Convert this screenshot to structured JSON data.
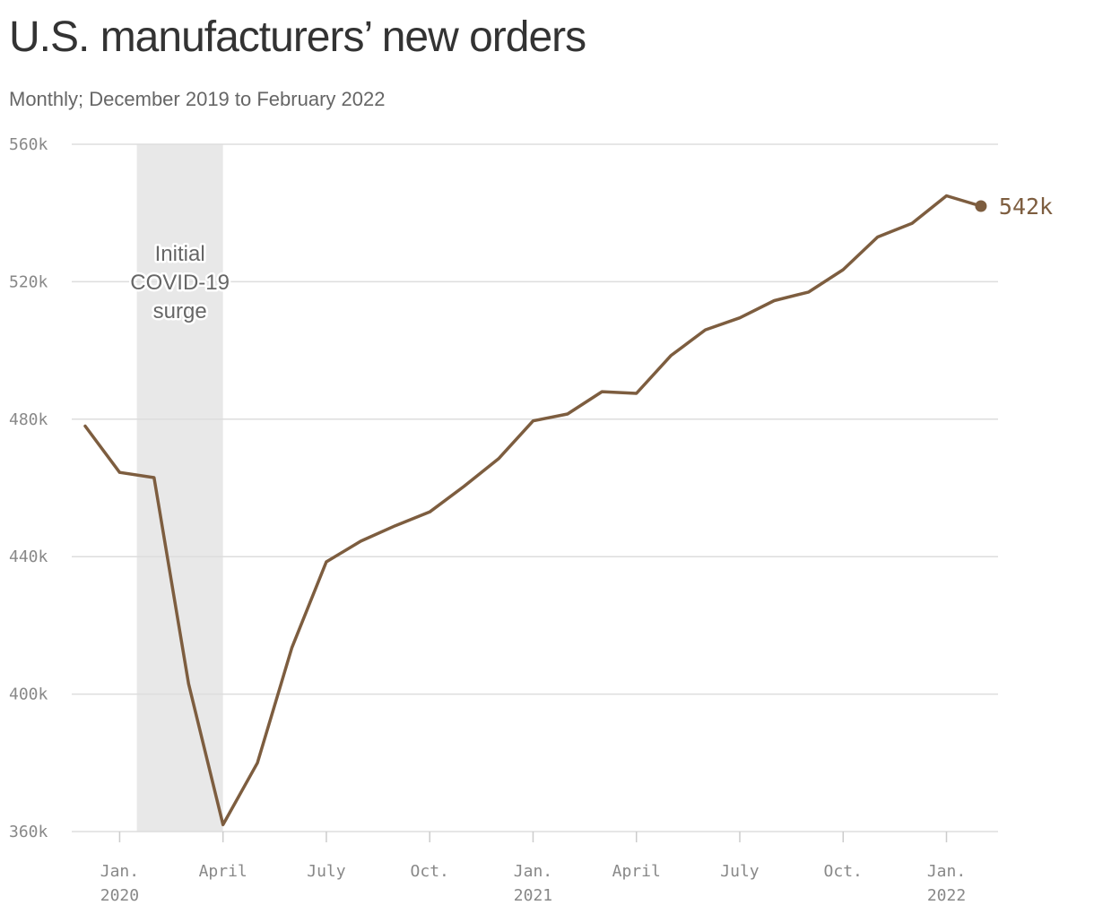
{
  "title": "U.S. manufacturers’ new orders",
  "subtitle": "Monthly; December 2019 to February 2022",
  "shaded_region": {
    "label_lines": [
      "Initial",
      "COVID-19",
      "surge"
    ],
    "start_month_index": 2,
    "end_month_index": 4
  },
  "end_label": "542k",
  "colors": {
    "line": "#7d5d3f",
    "shade": "#e8e8e8",
    "grid": "#dddddd",
    "tick_text": "#888888",
    "title": "#333333",
    "subtitle": "#666666"
  },
  "chart_data": {
    "type": "line",
    "title": "U.S. manufacturers’ new orders",
    "subtitle": "Monthly; December 2019 to February 2022",
    "xlabel": "",
    "ylabel": "",
    "ylim": [
      360000,
      560000
    ],
    "yticks": [
      360000,
      400000,
      440000,
      480000,
      520000,
      560000
    ],
    "ytick_labels": [
      "360k",
      "400k",
      "440k",
      "480k",
      "520k",
      "560k"
    ],
    "xticks": [
      {
        "month_index": 1,
        "lines": [
          "Jan.",
          "2020"
        ]
      },
      {
        "month_index": 4,
        "lines": [
          "April"
        ]
      },
      {
        "month_index": 7,
        "lines": [
          "July"
        ]
      },
      {
        "month_index": 10,
        "lines": [
          "Oct."
        ]
      },
      {
        "month_index": 13,
        "lines": [
          "Jan.",
          "2021"
        ]
      },
      {
        "month_index": 16,
        "lines": [
          "April"
        ]
      },
      {
        "month_index": 19,
        "lines": [
          "July"
        ]
      },
      {
        "month_index": 22,
        "lines": [
          "Oct."
        ]
      },
      {
        "month_index": 25,
        "lines": [
          "Jan.",
          "2022"
        ]
      }
    ],
    "grid": true,
    "x": [
      "2019-12",
      "2020-01",
      "2020-02",
      "2020-03",
      "2020-04",
      "2020-05",
      "2020-06",
      "2020-07",
      "2020-08",
      "2020-09",
      "2020-10",
      "2020-11",
      "2020-12",
      "2021-01",
      "2021-02",
      "2021-03",
      "2021-04",
      "2021-05",
      "2021-06",
      "2021-07",
      "2021-08",
      "2021-09",
      "2021-10",
      "2021-11",
      "2021-12",
      "2022-01",
      "2022-02"
    ],
    "series": [
      {
        "values": [
          478000,
          464500,
          463000,
          403000,
          362000,
          380000,
          413500,
          438500,
          444500,
          449000,
          453000,
          460500,
          468500,
          479500,
          481500,
          488000,
          487500,
          498500,
          506000,
          509500,
          514500,
          517000,
          523500,
          533000,
          537000,
          545000,
          542000
        ]
      }
    ]
  }
}
